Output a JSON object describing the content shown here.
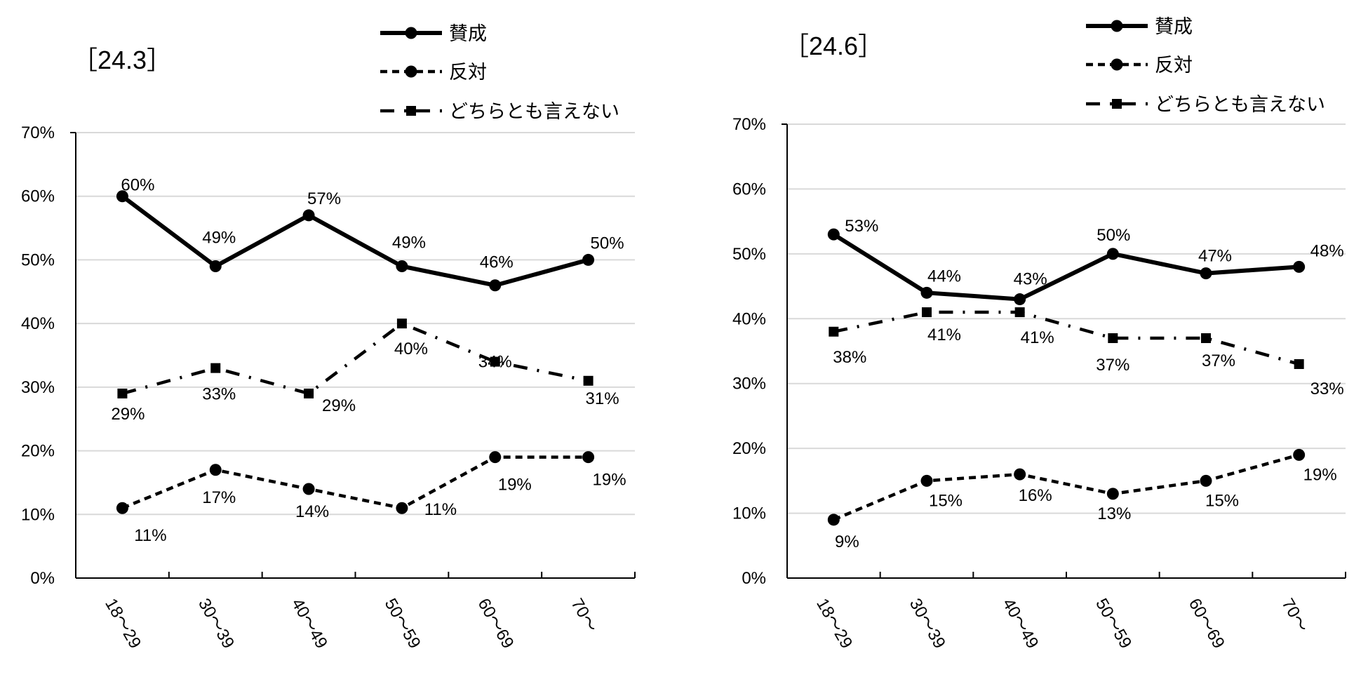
{
  "legend": {
    "support": "賛成",
    "oppose": "反対",
    "neither": "どちらとも言えない"
  },
  "chart_data": [
    {
      "type": "line",
      "title": "［24.3］",
      "categories": [
        "18～29",
        "30～39",
        "40～49",
        "50～59",
        "60～69",
        "70～"
      ],
      "ylim": [
        0,
        70
      ],
      "yticks": [
        "0%",
        "10%",
        "20%",
        "30%",
        "40%",
        "50%",
        "60%",
        "70%"
      ],
      "grid": true,
      "legend_position": "top-right",
      "series": [
        {
          "key": "support",
          "name": "賛成",
          "values": [
            60,
            49,
            57,
            49,
            46,
            50
          ],
          "labels": [
            "60%",
            "49%",
            "57%",
            "49%",
            "46%",
            "50%"
          ]
        },
        {
          "key": "oppose",
          "name": "反対",
          "values": [
            11,
            17,
            14,
            11,
            19,
            19
          ],
          "labels": [
            "11%",
            "17%",
            "14%",
            "11%",
            "19%",
            "19%"
          ]
        },
        {
          "key": "neither",
          "name": "どちらとも言えない",
          "values": [
            29,
            33,
            29,
            40,
            34,
            31
          ],
          "labels": [
            "29%",
            "33%",
            "29%",
            "40%",
            "34%",
            "31%"
          ]
        }
      ]
    },
    {
      "type": "line",
      "title": "［24.6］",
      "categories": [
        "18～29",
        "30～39",
        "40～49",
        "50～59",
        "60～69",
        "70～"
      ],
      "ylim": [
        0,
        70
      ],
      "yticks": [
        "0%",
        "10%",
        "20%",
        "30%",
        "40%",
        "50%",
        "60%",
        "70%"
      ],
      "grid": true,
      "legend_position": "top-right",
      "series": [
        {
          "key": "support",
          "name": "賛成",
          "values": [
            53,
            44,
            43,
            50,
            47,
            48
          ],
          "labels": [
            "53%",
            "44%",
            "43%",
            "50%",
            "47%",
            "48%"
          ]
        },
        {
          "key": "oppose",
          "name": "反対",
          "values": [
            9,
            15,
            16,
            13,
            15,
            19
          ],
          "labels": [
            "9%",
            "15%",
            "16%",
            "13%",
            "15%",
            "19%"
          ]
        },
        {
          "key": "neither",
          "name": "どちらとも言えない",
          "values": [
            38,
            41,
            41,
            37,
            37,
            33
          ],
          "labels": [
            "38%",
            "41%",
            "41%",
            "37%",
            "37%",
            "33%"
          ]
        }
      ]
    }
  ]
}
